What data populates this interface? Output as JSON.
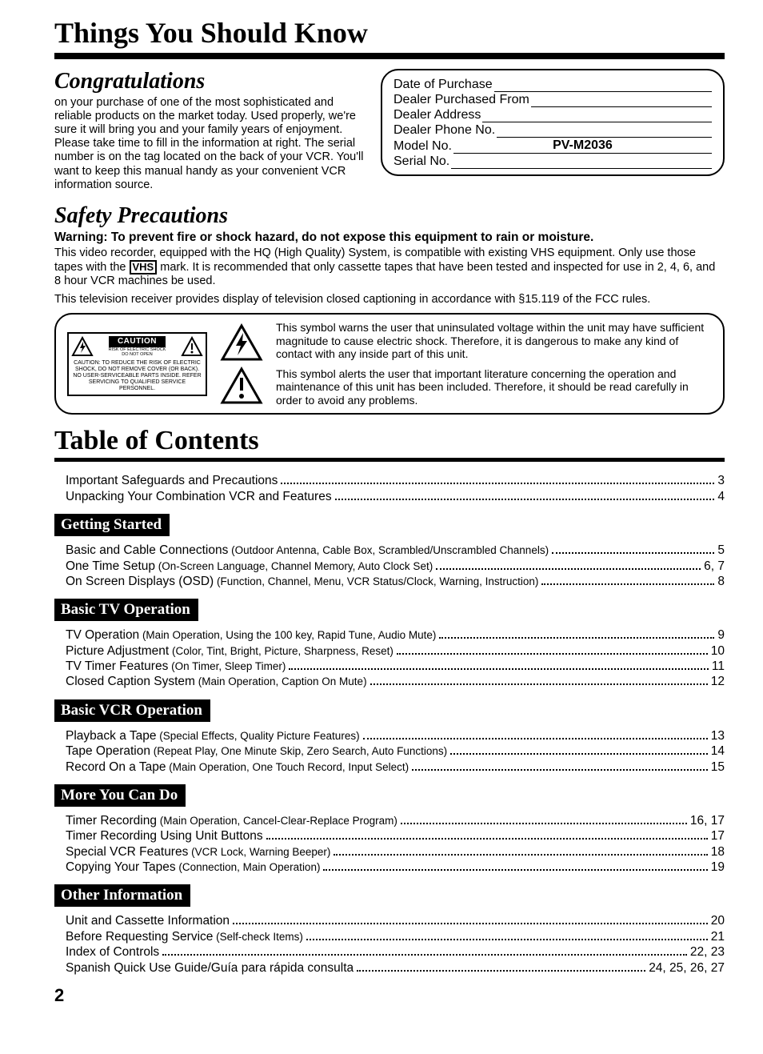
{
  "page_number": "2",
  "main_title": "Things You Should Know",
  "congrats": {
    "heading": "Congratulations",
    "text": "on your purchase of one of the most sophisticated and reliable products on the market today. Used properly, we're sure it will bring you and your family years of enjoyment. Please take time to fill in the information at right. The serial number is on the tag located on the back of your VCR. You'll want to keep this manual handy as your convenient VCR information source."
  },
  "info_box": {
    "lines": [
      {
        "label": "Date of Purchase",
        "value": ""
      },
      {
        "label": "Dealer Purchased From",
        "value": ""
      },
      {
        "label": "Dealer Address",
        "value": ""
      },
      {
        "label": "Dealer Phone No.",
        "value": ""
      },
      {
        "label": "Model No.",
        "value": "PV-M2036"
      },
      {
        "label": "Serial No.",
        "value": ""
      }
    ]
  },
  "safety": {
    "heading": "Safety Precautions",
    "warning": "Warning:  To prevent fire or shock hazard, do not expose this equipment to rain or moisture.",
    "p1a": "This video recorder, equipped with the HQ (High Quality) System, is compatible with existing VHS equipment. Only use those tapes with the ",
    "vhs": "VHS",
    "p1b": " mark. It is recommended that only cassette tapes that have been tested and inspected for use in 2, 4, 6, and 8 hour VCR machines be used.",
    "p2": "This television receiver provides display of television closed captioning in accordance with §15.119 of the FCC rules."
  },
  "caution_card": {
    "head": "CAUTION",
    "sub1": "RISK OF ELECTRIC SHOCK",
    "sub2": "DO NOT OPEN",
    "body": "CAUTION: TO REDUCE THE RISK OF ELECTRIC SHOCK, DO NOT REMOVE COVER (OR BACK). NO USER-SERVICEABLE PARTS INSIDE. REFER SERVICING TO QUALIFIED SERVICE PERSONNEL."
  },
  "symbol_text": {
    "bolt": "This symbol warns the user that uninsulated voltage within the unit may have sufficient magnitude to cause electric shock. Therefore, it is dangerous to make any kind of contact with any inside part of this unit.",
    "excl": "This symbol alerts the user that important literature concerning the operation and maintenance of this unit has been included. Therefore, it should be read carefully in order to avoid any problems."
  },
  "toc_title": "Table of Contents",
  "toc": {
    "top": [
      {
        "label": "Important Safeguards and Precautions",
        "detail": "",
        "page": "3"
      },
      {
        "label": "Unpacking Your Combination VCR and Features",
        "detail": "",
        "page": "4"
      }
    ],
    "sections": [
      {
        "head": "Getting Started",
        "items": [
          {
            "label": "Basic and Cable Connections",
            "detail": " (Outdoor Antenna, Cable Box, Scrambled/Unscrambled Channels)",
            "page": "5"
          },
          {
            "label": "One Time Setup",
            "detail": " (On-Screen Language, Channel Memory, Auto Clock Set)",
            "page": "6, 7"
          },
          {
            "label": "On Screen Displays (OSD)",
            "detail": " (Function, Channel, Menu, VCR Status/Clock, Warning, Instruction)",
            "page": "8"
          }
        ]
      },
      {
        "head": "Basic TV Operation",
        "items": [
          {
            "label": "TV Operation",
            "detail": " (Main Operation, Using the 100 key, Rapid Tune, Audio Mute)",
            "page": "9"
          },
          {
            "label": "Picture Adjustment",
            "detail": " (Color, Tint, Bright, Picture, Sharpness, Reset)",
            "page": "10"
          },
          {
            "label": "TV Timer Features",
            "detail": " (On Timer, Sleep Timer)",
            "page": "11"
          },
          {
            "label": "Closed Caption System",
            "detail": " (Main Operation, Caption On Mute)",
            "page": "12"
          }
        ]
      },
      {
        "head": "Basic VCR Operation",
        "items": [
          {
            "label": "Playback a Tape",
            "detail": " (Special Effects, Quality Picture Features)",
            "page": "13"
          },
          {
            "label": "Tape Operation",
            "detail": " (Repeat Play, One Minute Skip, Zero Search, Auto Functions)",
            "page": "14"
          },
          {
            "label": "Record On a Tape",
            "detail": " (Main Operation, One Touch Record, Input Select)",
            "page": "15"
          }
        ]
      },
      {
        "head": "More You Can Do",
        "items": [
          {
            "label": "Timer Recording",
            "detail": " (Main Operation, Cancel-Clear-Replace Program)",
            "page": "16, 17"
          },
          {
            "label": "Timer Recording Using Unit Buttons",
            "detail": "",
            "page": "17"
          },
          {
            "label": "Special VCR Features",
            "detail": " (VCR Lock, Warning Beeper)",
            "page": "18"
          },
          {
            "label": "Copying Your Tapes",
            "detail": " (Connection, Main Operation)",
            "page": "19"
          }
        ]
      },
      {
        "head": "Other Information",
        "items": [
          {
            "label": "Unit and Cassette Information",
            "detail": "",
            "page": "20"
          },
          {
            "label": "Before Requesting Service",
            "detail": " (Self-check Items)",
            "page": "21"
          },
          {
            "label": "Index of Controls",
            "detail": "",
            "page": "22, 23"
          },
          {
            "label": "Spanish Quick Use Guide/Guía para rápida consulta",
            "detail": "",
            "page": "24, 25, 26, 27"
          }
        ]
      }
    ]
  }
}
